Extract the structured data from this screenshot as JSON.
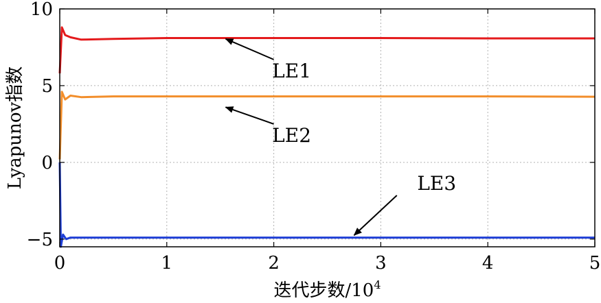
{
  "chart_data": {
    "type": "line",
    "xlabel": "迭代步数/10",
    "xlabel_exp": "4",
    "ylabel": "Lyapunov指数",
    "xlim": [
      0,
      5
    ],
    "ylim": [
      -5.5,
      10
    ],
    "xticks": [
      "0",
      "1",
      "2",
      "3",
      "4",
      "5"
    ],
    "yticks": [
      "10",
      "5",
      "0",
      "−5"
    ],
    "grid": true,
    "series": [
      {
        "name": "LE1",
        "color": "#e41a1c",
        "x": [
          0,
          0.02,
          0.05,
          0.1,
          0.2,
          0.5,
          1,
          2,
          3,
          4,
          5
        ],
        "y": [
          5.8,
          8.8,
          8.3,
          8.15,
          8.0,
          8.05,
          8.1,
          8.1,
          8.1,
          8.08,
          8.08
        ]
      },
      {
        "name": "LE2",
        "color": "#f28e2b",
        "x": [
          0,
          0.02,
          0.05,
          0.1,
          0.2,
          0.5,
          1,
          2,
          3,
          4,
          5
        ],
        "y": [
          0.2,
          4.6,
          4.1,
          4.35,
          4.25,
          4.3,
          4.3,
          4.3,
          4.3,
          4.3,
          4.28
        ]
      },
      {
        "name": "LE3",
        "color": "#1f3fd6",
        "x": [
          0,
          0.01,
          0.03,
          0.06,
          0.1,
          0.5,
          1,
          2,
          3,
          4,
          5
        ],
        "y": [
          0.0,
          -5.5,
          -4.7,
          -5.0,
          -4.9,
          -4.9,
          -4.9,
          -4.9,
          -4.9,
          -4.9,
          -4.9
        ]
      }
    ],
    "annotations": [
      {
        "text": "LE1",
        "arrow_to": [
          1.55,
          8.05
        ],
        "arrow_from": [
          2.0,
          6.7
        ]
      },
      {
        "text": "LE2",
        "arrow_to": [
          1.55,
          3.6
        ],
        "arrow_from": [
          2.0,
          2.5
        ]
      },
      {
        "text": "LE3",
        "arrow_to": [
          2.75,
          -4.75
        ],
        "arrow_from": [
          3.15,
          -2.15
        ]
      }
    ]
  }
}
